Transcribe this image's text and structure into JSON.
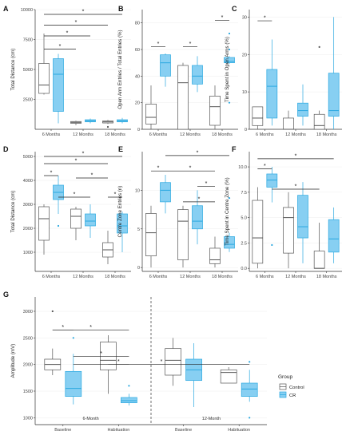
{
  "figure": {
    "colors": {
      "control_fill": "#ffffff",
      "control_stroke": "#555555",
      "cr_fill": "#87cff2",
      "cr_stroke": "#2aa8e0",
      "axis": "#333333",
      "grid": "#eeeeee"
    },
    "legend": {
      "title": "Group",
      "items": [
        "Control",
        "CR"
      ]
    }
  },
  "chart_data": [
    {
      "panel": "A",
      "type": "box",
      "ylabel": "Total Distance (cm)",
      "categories": [
        "6 Months",
        "12 Months",
        "18 Months"
      ],
      "ylim": [
        0,
        10000
      ],
      "yticks": [
        2500,
        5000,
        7500,
        10000
      ],
      "series": [
        {
          "name": "Control",
          "boxes": [
            {
              "min": 2900,
              "q1": 3000,
              "median": 3700,
              "q3": 5500,
              "max": 8000,
              "outliers": []
            },
            {
              "min": 350,
              "q1": 500,
              "median": 580,
              "q3": 650,
              "max": 720,
              "outliers": []
            },
            {
              "min": 450,
              "q1": 530,
              "median": 620,
              "q3": 700,
              "max": 780,
              "outliers": [
                200
              ]
            }
          ]
        },
        {
          "name": "CR",
          "boxes": [
            {
              "min": 500,
              "q1": 1500,
              "median": 4600,
              "q3": 5900,
              "max": 6300,
              "outliers": []
            },
            {
              "min": 500,
              "q1": 620,
              "median": 700,
              "q3": 800,
              "max": 900,
              "outliers": []
            },
            {
              "min": 500,
              "q1": 620,
              "median": 700,
              "q3": 800,
              "max": 950,
              "outliers": []
            }
          ]
        }
      ],
      "significance": [
        {
          "from": [
            0,
            0
          ],
          "to": [
            2,
            1
          ],
          "y": 9600,
          "label": "*"
        },
        {
          "from": [
            0,
            0
          ],
          "to": [
            2,
            0
          ],
          "y": 8700,
          "label": "*"
        },
        {
          "from": [
            0,
            0
          ],
          "to": [
            1,
            1
          ],
          "y": 7800,
          "label": "*"
        },
        {
          "from": [
            0,
            0
          ],
          "to": [
            1,
            0
          ],
          "y": 6700,
          "label": "*"
        }
      ]
    },
    {
      "panel": "B",
      "type": "box",
      "ylabel": "Open Arm Entries / Total Entries (%)",
      "categories": [
        "6 Months",
        "12 Months",
        "18 Months"
      ],
      "ylim": [
        0,
        90
      ],
      "yticks": [
        0,
        20,
        40,
        60,
        80
      ],
      "series": [
        {
          "name": "Control",
          "boxes": [
            {
              "min": 0,
              "q1": 4,
              "median": 9,
              "q3": 19,
              "max": 33,
              "outliers": []
            },
            {
              "min": 0,
              "q1": 0,
              "median": 35,
              "q3": 48,
              "max": 50,
              "outliers": []
            },
            {
              "min": 0,
              "q1": 3,
              "median": 17,
              "q3": 25,
              "max": 33,
              "outliers": []
            }
          ]
        },
        {
          "name": "CR",
          "boxes": [
            {
              "min": 32,
              "q1": 40,
              "median": 50,
              "q3": 56,
              "max": 57,
              "outliers": []
            },
            {
              "min": 28,
              "q1": 34,
              "median": 40,
              "q3": 48,
              "max": 55,
              "outliers": []
            },
            {
              "min": 49,
              "q1": 50,
              "median": 51,
              "q3": 54,
              "max": 55,
              "outliers": [
                72,
                60,
                20
              ]
            }
          ]
        }
      ],
      "significance": [
        {
          "from": [
            0,
            0
          ],
          "to": [
            0,
            1
          ],
          "y": 62,
          "label": "*"
        },
        {
          "from": [
            1,
            0
          ],
          "to": [
            1,
            1
          ],
          "y": 62,
          "label": "*"
        },
        {
          "from": [
            2,
            0
          ],
          "to": [
            2,
            1
          ],
          "y": 82,
          "label": "*"
        }
      ]
    },
    {
      "panel": "C",
      "type": "box",
      "ylabel": "Time Spent in Open Arms (%)",
      "categories": [
        "6 Months",
        "12 Months",
        "18 Months"
      ],
      "ylim": [
        0,
        32
      ],
      "yticks": [
        0,
        10,
        20,
        30
      ],
      "series": [
        {
          "name": "Control",
          "boxes": [
            {
              "min": 0,
              "q1": 1,
              "median": 3,
              "q3": 6,
              "max": 6,
              "outliers": []
            },
            {
              "min": 0,
              "q1": 0,
              "median": 0,
              "q3": 3,
              "max": 5,
              "outliers": []
            },
            {
              "min": 0,
              "q1": 0,
              "median": 1,
              "q3": 4,
              "max": 5,
              "outliers": [
                22
              ]
            }
          ]
        },
        {
          "name": "CR",
          "boxes": [
            {
              "min": 1,
              "q1": 3,
              "median": 11.5,
              "q3": 16,
              "max": 24,
              "outliers": []
            },
            {
              "min": 1,
              "q1": 3.5,
              "median": 5,
              "q3": 7,
              "max": 12,
              "outliers": []
            },
            {
              "min": 0,
              "q1": 3.5,
              "median": 5,
              "q3": 15,
              "max": 30,
              "outliers": []
            }
          ]
        }
      ],
      "significance": [
        {
          "from": [
            0,
            0
          ],
          "to": [
            0,
            1
          ],
          "y": 29,
          "label": "*"
        }
      ]
    },
    {
      "panel": "D",
      "type": "box",
      "ylabel": "Total Distance (cm)",
      "categories": [
        "6 Months",
        "12 Months",
        "18 Months"
      ],
      "ylim": [
        200,
        5200
      ],
      "yticks": [
        1000,
        2000,
        3000,
        4000,
        5000
      ],
      "series": [
        {
          "name": "Control",
          "boxes": [
            {
              "min": 900,
              "q1": 1500,
              "median": 2400,
              "q3": 2900,
              "max": 3000,
              "outliers": []
            },
            {
              "min": 1500,
              "q1": 2000,
              "median": 2500,
              "q3": 2800,
              "max": 2900,
              "outliers": []
            },
            {
              "min": 500,
              "q1": 800,
              "median": 1100,
              "q3": 1400,
              "max": 1900,
              "outliers": []
            }
          ]
        },
        {
          "name": "CR",
          "boxes": [
            {
              "min": 2600,
              "q1": 3200,
              "median": 3500,
              "q3": 3800,
              "max": 4200,
              "outliers": [
                2100
              ]
            },
            {
              "min": 1600,
              "q1": 2100,
              "median": 2300,
              "q3": 2600,
              "max": 3000,
              "outliers": []
            },
            {
              "min": 1000,
              "q1": 1800,
              "median": 2100,
              "q3": 2600,
              "max": 2700,
              "outliers": []
            }
          ]
        }
      ],
      "significance": [
        {
          "from": [
            0,
            0
          ],
          "to": [
            0,
            1
          ],
          "y": 4200,
          "label": "*"
        },
        {
          "from": [
            0,
            1
          ],
          "to": [
            1,
            1
          ],
          "y": 3300,
          "label": "*"
        },
        {
          "from": [
            1,
            0
          ],
          "to": [
            2,
            0
          ],
          "y": 4100,
          "label": "*"
        },
        {
          "from": [
            2,
            0
          ],
          "to": [
            2,
            1
          ],
          "y": 3300,
          "label": "*"
        },
        {
          "from": [
            0,
            0
          ],
          "to": [
            2,
            0
          ],
          "y": 4700,
          "label": "*"
        },
        {
          "from": [
            0,
            0
          ],
          "to": [
            2,
            1
          ],
          "y": 5000,
          "label": "*"
        }
      ]
    },
    {
      "panel": "E",
      "type": "box",
      "ylabel": "Centre Zone Entries (n)",
      "categories": [
        "6 Months",
        "12 Months",
        "18 Months"
      ],
      "ylim": [
        -0.5,
        15
      ],
      "yticks": [
        0,
        5,
        10
      ],
      "series": [
        {
          "name": "Control",
          "boxes": [
            {
              "min": 0,
              "q1": 1.5,
              "median": 4.5,
              "q3": 7,
              "max": 8,
              "outliers": []
            },
            {
              "min": 0,
              "q1": 1,
              "median": 6,
              "q3": 7.5,
              "max": 8,
              "outliers": []
            },
            {
              "min": 0,
              "q1": 0.5,
              "median": 1,
              "q3": 2.5,
              "max": 4,
              "outliers": []
            }
          ]
        },
        {
          "name": "CR",
          "boxes": [
            {
              "min": 7,
              "q1": 8.5,
              "median": 10,
              "q3": 11,
              "max": 12,
              "outliers": []
            },
            {
              "min": 3,
              "q1": 5,
              "median": 6,
              "q3": 8,
              "max": 10,
              "outliers": []
            },
            {
              "min": 2,
              "q1": 2.5,
              "median": 3,
              "q3": 4,
              "max": 4.5,
              "outliers": [
                9
              ]
            }
          ]
        }
      ],
      "significance": [
        {
          "from": [
            0,
            0
          ],
          "to": [
            0,
            1
          ],
          "y": 12.5,
          "label": "*"
        },
        {
          "from": [
            1,
            1
          ],
          "to": [
            2,
            0
          ],
          "y": 10.5,
          "label": "*"
        },
        {
          "from": [
            1,
            0
          ],
          "to": [
            2,
            0
          ],
          "y": 8.5,
          "label": "*"
        },
        {
          "from": [
            0,
            1
          ],
          "to": [
            2,
            0
          ],
          "y": 12.5,
          "label": "*"
        },
        {
          "from": [
            0,
            1
          ],
          "to": [
            2,
            1
          ],
          "y": 14.5,
          "label": "*"
        }
      ]
    },
    {
      "panel": "F",
      "type": "box",
      "ylabel": "Time Spent in Centre Zone (%)",
      "categories": [
        "6 Months",
        "12 Months",
        "18 Months"
      ],
      "ylim": [
        -0.3,
        11.5
      ],
      "yticks": [
        0.0,
        2.5,
        5.0,
        7.5,
        10.0
      ],
      "series": [
        {
          "name": "Control",
          "boxes": [
            {
              "min": 0,
              "q1": 0.5,
              "median": 3,
              "q3": 6.7,
              "max": 8,
              "outliers": []
            },
            {
              "min": 0,
              "q1": 1.5,
              "median": 5,
              "q3": 6,
              "max": 7.5,
              "outliers": []
            },
            {
              "min": 0,
              "q1": 0,
              "median": 0,
              "q3": 1.7,
              "max": 4.5,
              "outliers": []
            }
          ]
        },
        {
          "name": "CR",
          "boxes": [
            {
              "min": 6.5,
              "q1": 8,
              "median": 8.7,
              "q3": 9.3,
              "max": 10,
              "outliers": [
                2.3
              ]
            },
            {
              "min": 0.5,
              "q1": 3,
              "median": 4.1,
              "q3": 7.2,
              "max": 8.5,
              "outliers": []
            },
            {
              "min": 0.5,
              "q1": 1.6,
              "median": 2.9,
              "q3": 4.8,
              "max": 6,
              "outliers": []
            }
          ]
        }
      ],
      "significance": [
        {
          "from": [
            0,
            0
          ],
          "to": [
            0,
            1
          ],
          "y": 9.8,
          "label": "*"
        },
        {
          "from": [
            0,
            1
          ],
          "to": [
            2,
            0
          ],
          "y": 7.8,
          "label": "*"
        },
        {
          "from": [
            0,
            0
          ],
          "to": [
            2,
            1
          ],
          "y": 10.8,
          "label": "*"
        }
      ]
    },
    {
      "panel": "G",
      "type": "box",
      "ylabel": "Amplitude (mV)",
      "categories": [
        "Baseline",
        "Habituation",
        "Baseline",
        "Habituation"
      ],
      "group_labels": [
        "6-Month",
        "12-Month"
      ],
      "ylim": [
        870,
        3270
      ],
      "yticks": [
        1000,
        1500,
        2000,
        2500,
        3000
      ],
      "series": [
        {
          "name": "Control",
          "boxes": [
            {
              "min": 1800,
              "q1": 1900,
              "median": 2000,
              "q3": 2100,
              "max": 2300,
              "outliers": [
                3000
              ]
            },
            {
              "min": 1450,
              "q1": 1900,
              "median": 2080,
              "q3": 2420,
              "max": 2550,
              "outliers": []
            },
            {
              "min": 1600,
              "q1": 1800,
              "median": 2080,
              "q3": 2300,
              "max": 2500,
              "outliers": []
            },
            {
              "min": 1650,
              "q1": 1650,
              "median": 1850,
              "q3": 1900,
              "max": 1950,
              "outliers": []
            }
          ]
        },
        {
          "name": "CR",
          "boxes": [
            {
              "min": 1250,
              "q1": 1400,
              "median": 1550,
              "q3": 1870,
              "max": 2200,
              "outliers": [
                2500
              ]
            },
            {
              "min": 1230,
              "q1": 1280,
              "median": 1320,
              "q3": 1380,
              "max": 1450,
              "outliers": [
                1600
              ]
            },
            {
              "min": 1200,
              "q1": 1700,
              "median": 1900,
              "q3": 2100,
              "max": 2400,
              "outliers": []
            },
            {
              "min": 1300,
              "q1": 1400,
              "median": 1540,
              "q3": 1650,
              "max": 1900,
              "outliers": [
                2050,
                1000
              ]
            }
          ]
        }
      ],
      "significance": [
        {
          "from": [
            0,
            0
          ],
          "to": [
            0,
            1
          ],
          "y": 2650,
          "label": "*"
        },
        {
          "from": [
            0,
            1
          ],
          "to": [
            1,
            1
          ],
          "y": 2150,
          "label": "*"
        },
        {
          "from": [
            0,
            0
          ],
          "to": [
            1,
            1
          ],
          "y": 2650,
          "label": "*"
        },
        {
          "from": [
            1,
            0
          ],
          "to": [
            1,
            1
          ],
          "y": 2000,
          "label": "*"
        },
        {
          "from": [
            0,
            1
          ],
          "to": [
            3,
            1
          ],
          "y": 2000,
          "label": "*"
        }
      ]
    }
  ]
}
